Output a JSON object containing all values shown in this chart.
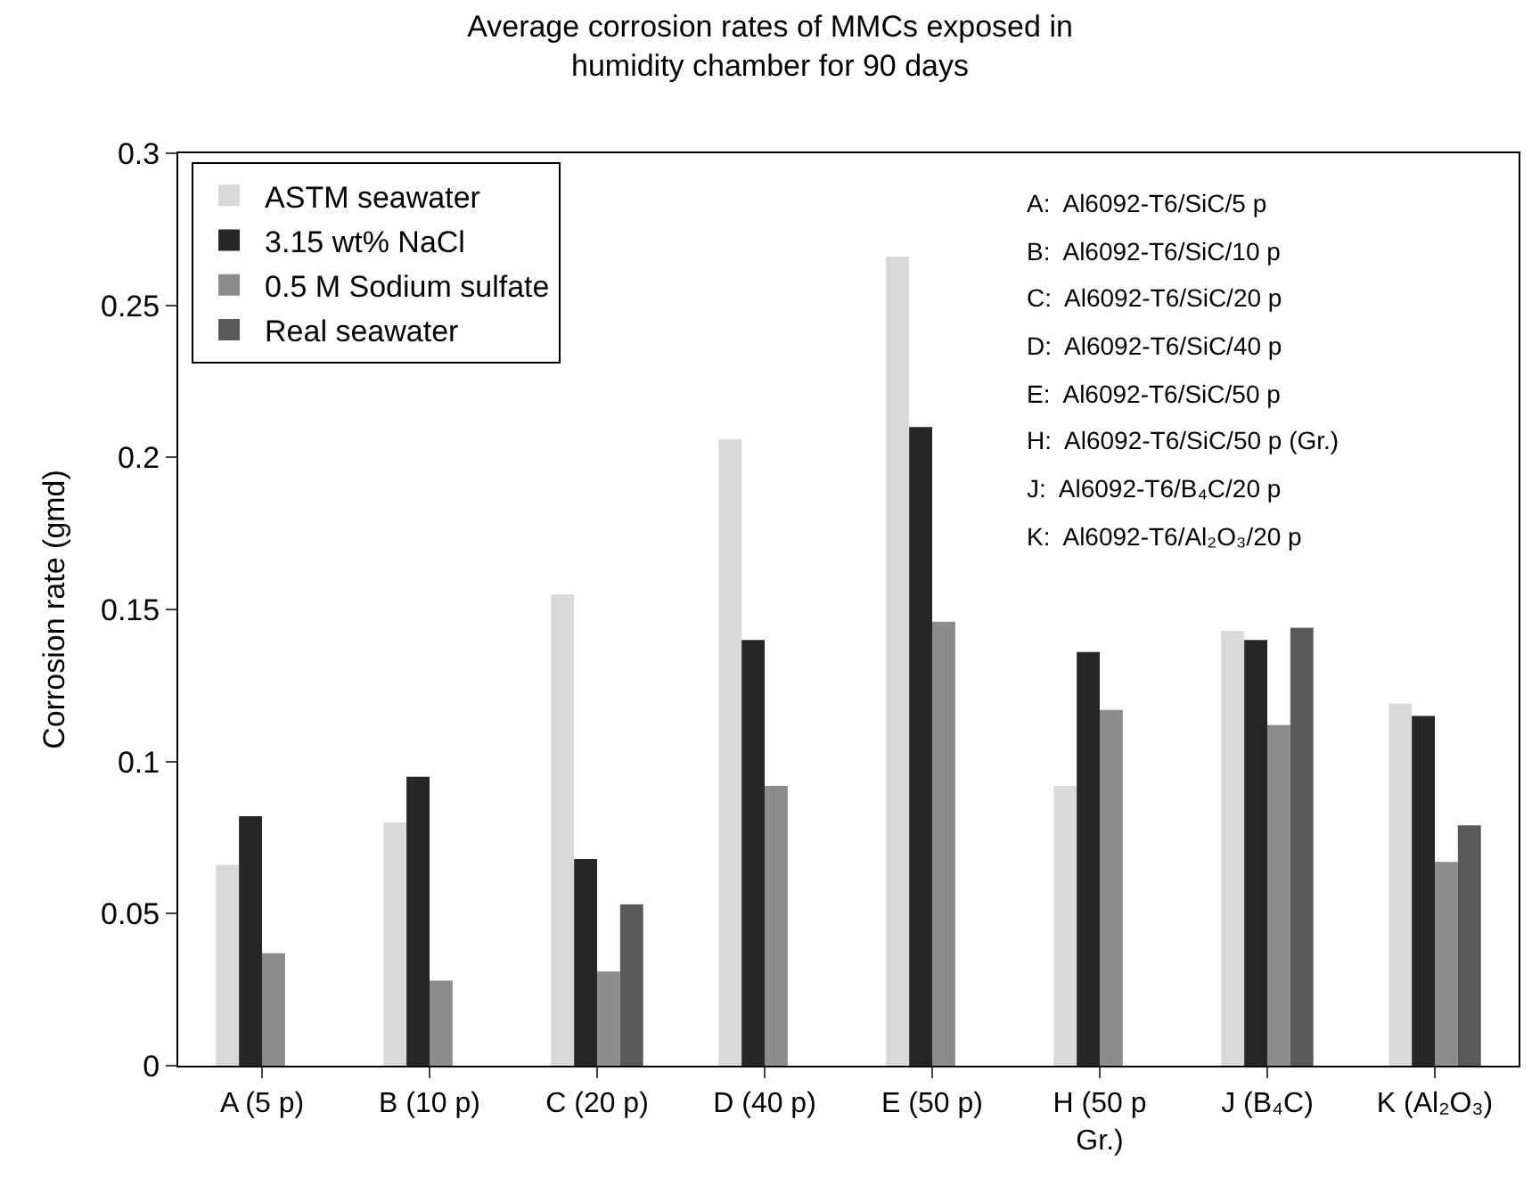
{
  "chart_data": {
    "type": "bar",
    "title": "Average corrosion rates of MMCs exposed in\nhumidity chamber for 90 days",
    "ylabel": "Corrosion rate (gmd)",
    "categories": [
      "A (5 p)",
      "B (10 p)",
      "C (20 p)",
      "D (40 p)",
      "E (50 p)",
      "H (50 p\nGr.)",
      "J (B₄C)",
      "K (Al₂O₃)"
    ],
    "series": [
      {
        "name": "ASTM seawater",
        "color": "#d9d9d9",
        "values": [
          0.066,
          0.08,
          0.155,
          0.206,
          0.266,
          0.092,
          0.143,
          0.119
        ]
      },
      {
        "name": "3.15 wt% NaCl",
        "color": "#262626",
        "values": [
          0.082,
          0.095,
          0.068,
          0.14,
          0.21,
          0.136,
          0.14,
          0.115
        ]
      },
      {
        "name": "0.5 M Sodium sulfate",
        "color": "#8c8c8c",
        "values": [
          0.037,
          0.028,
          0.031,
          0.092,
          0.146,
          0.117,
          0.112,
          0.067
        ]
      },
      {
        "name": "Real seawater",
        "color": "#595959",
        "values": [
          null,
          null,
          0.053,
          null,
          null,
          null,
          0.144,
          0.079
        ]
      }
    ],
    "ylim": [
      0,
      0.3
    ],
    "yticks": [
      0,
      0.05,
      0.1,
      0.15,
      0.2,
      0.25,
      0.3
    ],
    "legend": "top left",
    "annotations": [
      "A:  Al6092-T6/SiC/5 p",
      "B:  Al6092-T6/SiC/10 p",
      "C:  Al6092-T6/SiC/20 p",
      "D:  Al6092-T6/SiC/40 p",
      "E:  Al6092-T6/SiC/50 p",
      "H:  Al6092-T6/SiC/50 p (Gr.)",
      "J:  Al6092-T6/B₄C/20 p",
      "K:  Al6092-T6/Al₂O₃/20 p"
    ]
  }
}
